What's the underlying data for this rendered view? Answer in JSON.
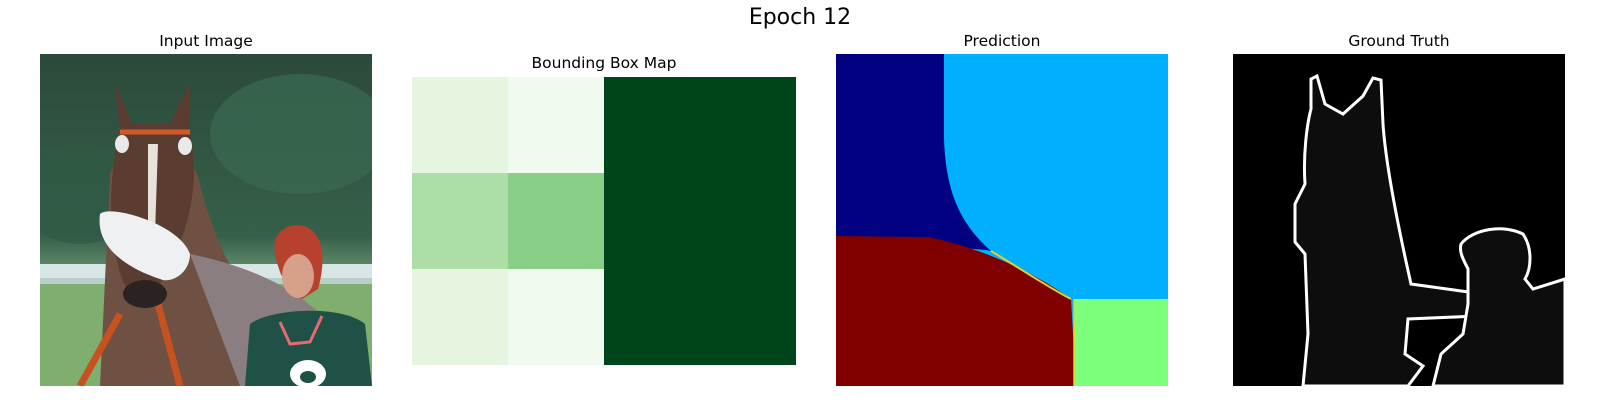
{
  "figure": {
    "title": "Epoch 12"
  },
  "panels": {
    "input": {
      "title": "Input Image"
    },
    "bbox": {
      "title": "Bounding Box Map",
      "grid": {
        "rows": 3,
        "cols": 4,
        "values": [
          [
            0.15,
            0.05,
            1.0,
            1.0
          ],
          [
            0.45,
            0.55,
            1.0,
            1.0
          ],
          [
            0.15,
            0.05,
            1.0,
            1.0
          ]
        ]
      },
      "colormap": "Greens"
    },
    "prediction": {
      "title": "Prediction",
      "colors": {
        "top_left": "#000080",
        "top_right": "#00b0ff",
        "bottom_left": "#800000",
        "bottom_right": "#7cff7a"
      },
      "colormap": "jet"
    },
    "ground_truth": {
      "title": "Ground Truth",
      "colors": {
        "background": "#000000",
        "object": "#0d0d0d",
        "boundary": "#ffffff"
      }
    }
  }
}
